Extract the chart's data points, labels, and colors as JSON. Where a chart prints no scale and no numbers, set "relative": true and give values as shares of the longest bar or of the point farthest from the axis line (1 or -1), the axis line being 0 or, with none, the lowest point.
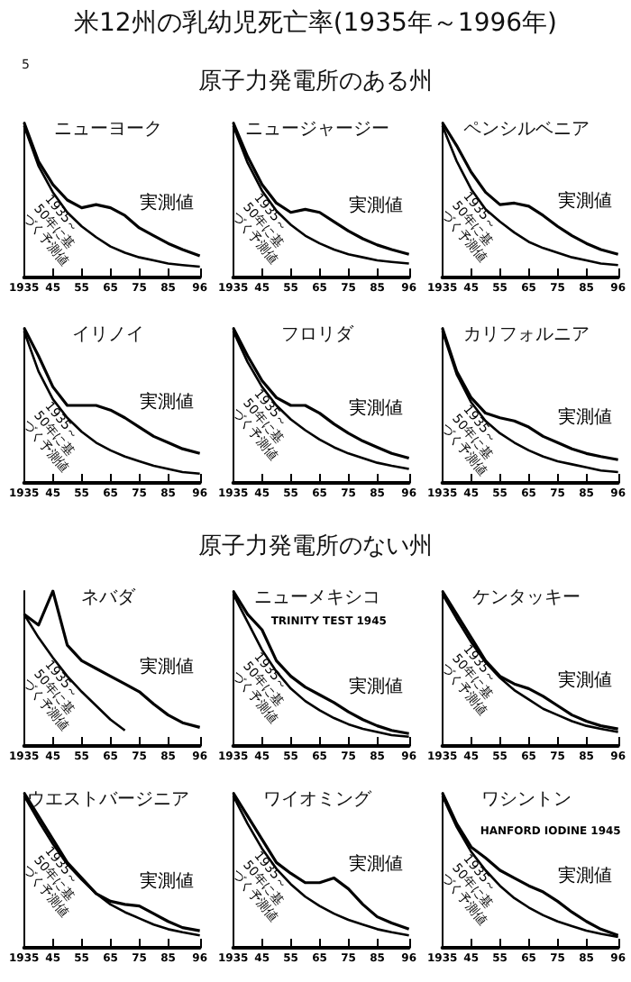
{
  "chart_data": [
    {
      "type": "other",
      "title": "米12州の乳幼児死亡率(1935年～1996年)",
      "annotations": [
        "5"
      ]
    },
    {
      "type": "other",
      "title": "原子力発電所のある州"
    },
    {
      "type": "line",
      "title": "ニューヨーク",
      "relative": true,
      "x": [
        1935,
        1940,
        1945,
        1950,
        1955,
        1960,
        1965,
        1970,
        1975,
        1980,
        1985,
        1990,
        1996
      ],
      "xlim": [
        1935,
        1996
      ],
      "xticks": [
        {
          "value": 1935,
          "label": "1935"
        },
        {
          "value": 1945,
          "label": "45"
        },
        {
          "value": 1955,
          "label": "55"
        },
        {
          "value": 1965,
          "label": "65"
        },
        {
          "value": 1975,
          "label": "75"
        },
        {
          "value": 1985,
          "label": "85"
        },
        {
          "value": 1996,
          "label": "96"
        }
      ],
      "series": [
        {
          "name": "実測値",
          "color": "#000000",
          "values": [
            1,
            0.75,
            0.6,
            0.5,
            0.45,
            0.47,
            0.45,
            0.4,
            0.32,
            0.27,
            0.22,
            0.18,
            0.14
          ]
        },
        {
          "name": "1935～50年に基づく予測値",
          "color": "#000000",
          "values": [
            0.98,
            0.72,
            0.55,
            0.42,
            0.33,
            0.26,
            0.2,
            0.16,
            0.13,
            0.11,
            0.09,
            0.08,
            0.07
          ]
        }
      ]
    },
    {
      "type": "line",
      "title": "ニュージャージー",
      "relative": true,
      "x": [
        1935,
        1940,
        1945,
        1950,
        1955,
        1960,
        1965,
        1970,
        1975,
        1980,
        1985,
        1990,
        1996
      ],
      "xlim": [
        1935,
        1996
      ],
      "xticks": [
        {
          "value": 1935,
          "label": "1935"
        },
        {
          "value": 1945,
          "label": "45"
        },
        {
          "value": 1955,
          "label": "55"
        },
        {
          "value": 1965,
          "label": "65"
        },
        {
          "value": 1975,
          "label": "75"
        },
        {
          "value": 1985,
          "label": "85"
        },
        {
          "value": 1996,
          "label": "96"
        }
      ],
      "series": [
        {
          "name": "実測値",
          "color": "#000000",
          "values": [
            1,
            0.78,
            0.6,
            0.48,
            0.42,
            0.44,
            0.42,
            0.36,
            0.3,
            0.25,
            0.21,
            0.18,
            0.15
          ]
        },
        {
          "name": "1935～50年に基づく予測値",
          "color": "#000000",
          "values": [
            0.98,
            0.74,
            0.56,
            0.43,
            0.34,
            0.27,
            0.22,
            0.18,
            0.15,
            0.13,
            0.11,
            0.1,
            0.09
          ]
        }
      ]
    },
    {
      "type": "line",
      "title": "ペンシルベニア",
      "relative": true,
      "x": [
        1935,
        1940,
        1945,
        1950,
        1955,
        1960,
        1965,
        1970,
        1975,
        1980,
        1985,
        1990,
        1996
      ],
      "xlim": [
        1935,
        1996
      ],
      "xticks": [
        {
          "value": 1935,
          "label": "1935"
        },
        {
          "value": 1945,
          "label": "45"
        },
        {
          "value": 1955,
          "label": "55"
        },
        {
          "value": 1965,
          "label": "65"
        },
        {
          "value": 1975,
          "label": "75"
        },
        {
          "value": 1985,
          "label": "85"
        },
        {
          "value": 1996,
          "label": "96"
        }
      ],
      "series": [
        {
          "name": "実測値",
          "color": "#000000",
          "values": [
            1,
            0.85,
            0.68,
            0.55,
            0.47,
            0.48,
            0.46,
            0.4,
            0.33,
            0.27,
            0.22,
            0.18,
            0.15
          ]
        },
        {
          "name": "1935～50年に基づく予測値",
          "color": "#000000",
          "values": [
            0.98,
            0.75,
            0.57,
            0.44,
            0.36,
            0.29,
            0.23,
            0.19,
            0.16,
            0.13,
            0.11,
            0.09,
            0.08
          ]
        }
      ]
    },
    {
      "type": "line",
      "title": "イリノイ",
      "relative": true,
      "x": [
        1935,
        1940,
        1945,
        1950,
        1955,
        1960,
        1965,
        1970,
        1975,
        1980,
        1985,
        1990,
        1996
      ],
      "xlim": [
        1935,
        1996
      ],
      "xticks": [
        {
          "value": 1935,
          "label": "1935"
        },
        {
          "value": 1945,
          "label": "45"
        },
        {
          "value": 1955,
          "label": "55"
        },
        {
          "value": 1965,
          "label": "65"
        },
        {
          "value": 1975,
          "label": "75"
        },
        {
          "value": 1985,
          "label": "85"
        },
        {
          "value": 1996,
          "label": "96"
        }
      ],
      "series": [
        {
          "name": "実測値",
          "color": "#000000",
          "values": [
            1,
            0.82,
            0.62,
            0.5,
            0.5,
            0.5,
            0.47,
            0.42,
            0.36,
            0.3,
            0.26,
            0.22,
            0.19
          ]
        },
        {
          "name": "1935～50年に基づく予測値",
          "color": "#000000",
          "values": [
            0.98,
            0.72,
            0.54,
            0.42,
            0.33,
            0.26,
            0.21,
            0.17,
            0.14,
            0.11,
            0.09,
            0.07,
            0.06
          ]
        }
      ]
    },
    {
      "type": "line",
      "title": "フロリダ",
      "relative": true,
      "x": [
        1935,
        1940,
        1945,
        1950,
        1955,
        1960,
        1965,
        1970,
        1975,
        1980,
        1985,
        1990,
        1996
      ],
      "xlim": [
        1935,
        1996
      ],
      "xticks": [
        {
          "value": 1935,
          "label": "1935"
        },
        {
          "value": 1945,
          "label": "45"
        },
        {
          "value": 1955,
          "label": "55"
        },
        {
          "value": 1965,
          "label": "65"
        },
        {
          "value": 1975,
          "label": "75"
        },
        {
          "value": 1985,
          "label": "85"
        },
        {
          "value": 1996,
          "label": "96"
        }
      ],
      "series": [
        {
          "name": "実測値",
          "color": "#000000",
          "values": [
            1,
            0.82,
            0.66,
            0.55,
            0.5,
            0.5,
            0.45,
            0.38,
            0.32,
            0.27,
            0.23,
            0.19,
            0.16
          ]
        },
        {
          "name": "1935～50年に基づく予測値",
          "color": "#000000",
          "values": [
            0.98,
            0.78,
            0.62,
            0.5,
            0.41,
            0.34,
            0.28,
            0.23,
            0.19,
            0.16,
            0.13,
            0.11,
            0.09
          ]
        }
      ]
    },
    {
      "type": "line",
      "title": "カリフォルニア",
      "relative": true,
      "x": [
        1935,
        1940,
        1945,
        1950,
        1955,
        1960,
        1965,
        1970,
        1975,
        1980,
        1985,
        1990,
        1996
      ],
      "xlim": [
        1935,
        1996
      ],
      "xticks": [
        {
          "value": 1935,
          "label": "1935"
        },
        {
          "value": 1945,
          "label": "45"
        },
        {
          "value": 1955,
          "label": "55"
        },
        {
          "value": 1965,
          "label": "65"
        },
        {
          "value": 1975,
          "label": "75"
        },
        {
          "value": 1985,
          "label": "85"
        },
        {
          "value": 1996,
          "label": "96"
        }
      ],
      "series": [
        {
          "name": "実測値",
          "color": "#000000",
          "values": [
            1,
            0.72,
            0.55,
            0.45,
            0.42,
            0.4,
            0.36,
            0.3,
            0.26,
            0.22,
            0.19,
            0.17,
            0.15
          ]
        },
        {
          "name": "1935～50年に基づく予測値",
          "color": "#000000",
          "values": [
            0.98,
            0.7,
            0.52,
            0.4,
            0.32,
            0.26,
            0.21,
            0.17,
            0.14,
            0.12,
            0.1,
            0.08,
            0.07
          ]
        }
      ]
    },
    {
      "type": "other",
      "title": "原子力発電所のない州"
    },
    {
      "type": "line",
      "title": "ネバダ",
      "relative": true,
      "x": [
        1935,
        1940,
        1945,
        1950,
        1955,
        1960,
        1965,
        1970,
        1975,
        1980,
        1985,
        1990,
        1996
      ],
      "xlim": [
        1935,
        1996
      ],
      "xticks": [
        {
          "value": 1935,
          "label": "1935"
        },
        {
          "value": 1945,
          "label": "45"
        },
        {
          "value": 1955,
          "label": "55"
        },
        {
          "value": 1965,
          "label": "65"
        },
        {
          "value": 1975,
          "label": "75"
        },
        {
          "value": 1985,
          "label": "85"
        },
        {
          "value": 1996,
          "label": "96"
        }
      ],
      "series": [
        {
          "name": "実測値",
          "color": "#000000",
          "values": [
            0.85,
            0.78,
            1,
            0.65,
            0.55,
            0.5,
            0.45,
            0.4,
            0.35,
            0.27,
            0.2,
            0.15,
            0.12
          ]
        },
        {
          "name": "1935～50年に基づく予測値",
          "color": "#000000",
          "values": [
            0.85,
            0.7,
            0.57,
            0.45,
            0.35,
            0.26,
            0.17,
            0.1,
            null,
            null,
            null,
            null,
            null
          ]
        }
      ]
    },
    {
      "type": "line",
      "title": "ニューメキシコ",
      "relative": true,
      "annotations": [
        {
          "text": "TRINITY TEST 1945",
          "x": 1945,
          "y": 0.8
        }
      ],
      "x": [
        1935,
        1940,
        1945,
        1950,
        1955,
        1960,
        1965,
        1970,
        1975,
        1980,
        1985,
        1990,
        1996
      ],
      "xlim": [
        1935,
        1996
      ],
      "xticks": [
        {
          "value": 1935,
          "label": "1935"
        },
        {
          "value": 1945,
          "label": "45"
        },
        {
          "value": 1955,
          "label": "55"
        },
        {
          "value": 1965,
          "label": "65"
        },
        {
          "value": 1975,
          "label": "75"
        },
        {
          "value": 1985,
          "label": "85"
        },
        {
          "value": 1996,
          "label": "96"
        }
      ],
      "series": [
        {
          "name": "実測値",
          "color": "#000000",
          "values": [
            1,
            0.85,
            0.75,
            0.55,
            0.45,
            0.38,
            0.33,
            0.28,
            0.22,
            0.17,
            0.13,
            0.1,
            0.08
          ]
        },
        {
          "name": "1935～50年に基づく予測値",
          "color": "#000000",
          "values": [
            0.98,
            0.8,
            0.62,
            0.48,
            0.37,
            0.29,
            0.23,
            0.18,
            0.14,
            0.11,
            0.09,
            0.07,
            0.06
          ]
        }
      ]
    },
    {
      "type": "line",
      "title": "ケンタッキー",
      "relative": true,
      "x": [
        1935,
        1940,
        1945,
        1950,
        1955,
        1960,
        1965,
        1970,
        1975,
        1980,
        1985,
        1990,
        1996
      ],
      "xlim": [
        1935,
        1996
      ],
      "xticks": [
        {
          "value": 1935,
          "label": "1935"
        },
        {
          "value": 1945,
          "label": "45"
        },
        {
          "value": 1955,
          "label": "55"
        },
        {
          "value": 1965,
          "label": "65"
        },
        {
          "value": 1975,
          "label": "75"
        },
        {
          "value": 1985,
          "label": "85"
        },
        {
          "value": 1996,
          "label": "96"
        }
      ],
      "series": [
        {
          "name": "実測値",
          "color": "#000000",
          "values": [
            1,
            0.85,
            0.7,
            0.55,
            0.45,
            0.4,
            0.37,
            0.32,
            0.26,
            0.2,
            0.16,
            0.13,
            0.11
          ]
        },
        {
          "name": "1935～50年に基づく予測値",
          "color": "#000000",
          "values": [
            0.98,
            0.82,
            0.67,
            0.54,
            0.44,
            0.36,
            0.3,
            0.24,
            0.2,
            0.16,
            0.13,
            0.11,
            0.09
          ]
        }
      ]
    },
    {
      "type": "line",
      "title": "ウエストバージニア",
      "relative": true,
      "x": [
        1935,
        1940,
        1945,
        1950,
        1955,
        1960,
        1965,
        1970,
        1975,
        1980,
        1985,
        1990,
        1996
      ],
      "xlim": [
        1935,
        1996
      ],
      "xticks": [
        {
          "value": 1935,
          "label": "1935"
        },
        {
          "value": 1945,
          "label": "45"
        },
        {
          "value": 1955,
          "label": "55"
        },
        {
          "value": 1965,
          "label": "65"
        },
        {
          "value": 1975,
          "label": "75"
        },
        {
          "value": 1985,
          "label": "85"
        },
        {
          "value": 1996,
          "label": "96"
        }
      ],
      "series": [
        {
          "name": "実測値",
          "color": "#000000",
          "values": [
            1,
            0.85,
            0.7,
            0.55,
            0.45,
            0.35,
            0.3,
            0.28,
            0.27,
            0.22,
            0.17,
            0.13,
            0.11
          ]
        },
        {
          "name": "1935～50年に基づく予測値",
          "color": "#000000",
          "values": [
            0.98,
            0.82,
            0.67,
            0.54,
            0.44,
            0.35,
            0.28,
            0.23,
            0.19,
            0.15,
            0.12,
            0.1,
            0.08
          ]
        }
      ]
    },
    {
      "type": "line",
      "title": "ワイオミング",
      "relative": true,
      "x": [
        1935,
        1940,
        1945,
        1950,
        1955,
        1960,
        1965,
        1970,
        1975,
        1980,
        1985,
        1990,
        1996
      ],
      "xlim": [
        1935,
        1996
      ],
      "xticks": [
        {
          "value": 1935,
          "label": "1935"
        },
        {
          "value": 1945,
          "label": "45"
        },
        {
          "value": 1955,
          "label": "55"
        },
        {
          "value": 1965,
          "label": "65"
        },
        {
          "value": 1975,
          "label": "75"
        },
        {
          "value": 1985,
          "label": "85"
        },
        {
          "value": 1996,
          "label": "96"
        }
      ],
      "series": [
        {
          "name": "実測値",
          "color": "#000000",
          "values": [
            1,
            0.85,
            0.7,
            0.55,
            0.48,
            0.42,
            0.42,
            0.45,
            0.38,
            0.28,
            0.2,
            0.16,
            0.12
          ]
        },
        {
          "name": "1935～50年に基づく予測値",
          "color": "#000000",
          "values": [
            0.98,
            0.8,
            0.64,
            0.51,
            0.41,
            0.33,
            0.27,
            0.22,
            0.18,
            0.15,
            0.12,
            0.1,
            0.08
          ]
        }
      ]
    },
    {
      "type": "line",
      "title": "ワシントン",
      "relative": true,
      "annotations": [
        {
          "text": "HANFORD IODINE 1945",
          "x": 1945,
          "y": 0.75
        }
      ],
      "x": [
        1935,
        1940,
        1945,
        1950,
        1955,
        1960,
        1965,
        1970,
        1975,
        1980,
        1985,
        1990,
        1996
      ],
      "xlim": [
        1935,
        1996
      ],
      "xticks": [
        {
          "value": 1935,
          "label": "1935"
        },
        {
          "value": 1945,
          "label": "45"
        },
        {
          "value": 1955,
          "label": "55"
        },
        {
          "value": 1965,
          "label": "65"
        },
        {
          "value": 1975,
          "label": "75"
        },
        {
          "value": 1985,
          "label": "85"
        },
        {
          "value": 1996,
          "label": "96"
        }
      ],
      "series": [
        {
          "name": "実測値",
          "color": "#000000",
          "values": [
            1,
            0.8,
            0.65,
            0.58,
            0.5,
            0.45,
            0.4,
            0.36,
            0.3,
            0.23,
            0.17,
            0.12,
            0.08
          ]
        },
        {
          "name": "1935～50年に基づく予測値",
          "color": "#000000",
          "values": [
            0.98,
            0.78,
            0.62,
            0.5,
            0.4,
            0.32,
            0.26,
            0.21,
            0.17,
            0.14,
            0.11,
            0.09,
            0.07
          ]
        }
      ]
    }
  ]
}
